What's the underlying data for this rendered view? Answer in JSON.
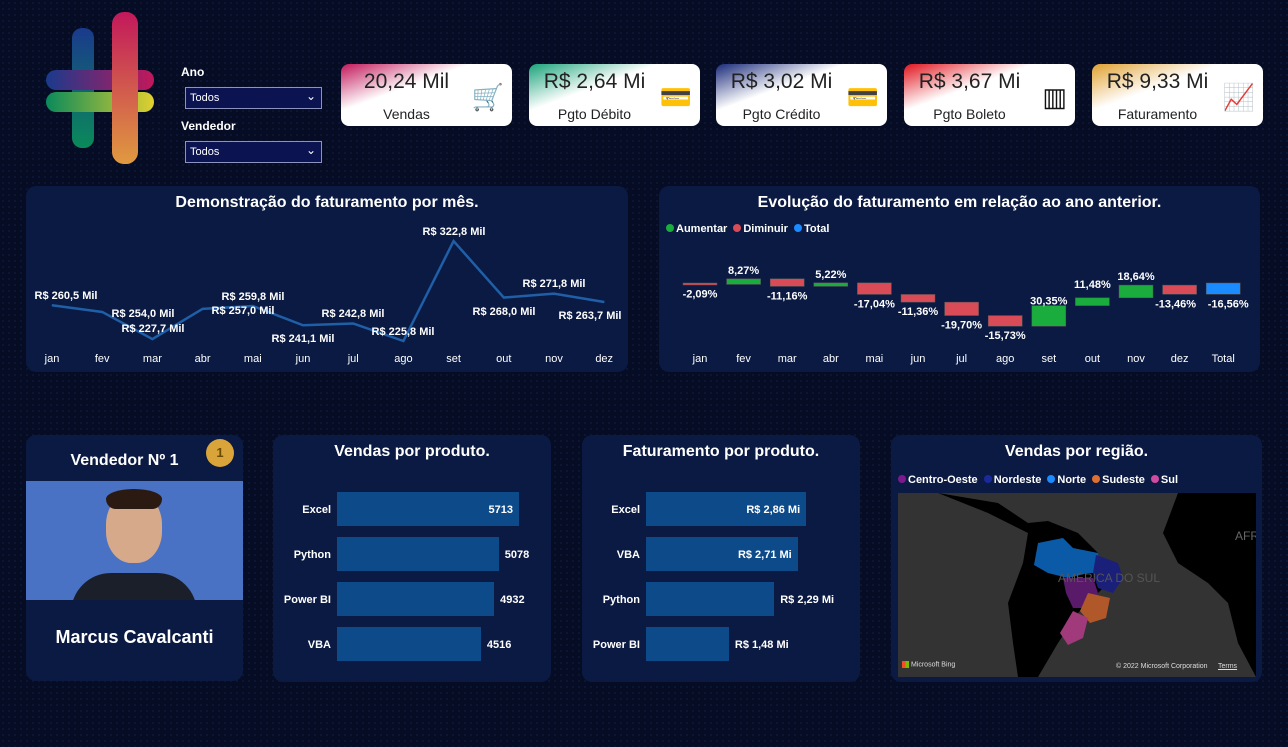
{
  "filters": {
    "ano_label": "Ano",
    "ano_value": "Todos",
    "vendedor_label": "Vendedor",
    "vendedor_value": "Todos"
  },
  "kpis": [
    {
      "value": "20,24 Mil",
      "label": "Vendas",
      "icon": "cart-icon",
      "color": "#c2185b"
    },
    {
      "value": "R$ 2,64 Mi",
      "label": "Pgto Débito",
      "icon": "debit-card-icon",
      "color": "#1aa37a"
    },
    {
      "value": "R$ 3,02 Mi",
      "label": "Pgto Crédito",
      "icon": "credit-card-icon",
      "color": "#1a2a7a"
    },
    {
      "value": "R$ 3,67 Mi",
      "label": "Pgto Boleto",
      "icon": "barcode-icon",
      "color": "#e0141e"
    },
    {
      "value": "R$ 9,33 Mi",
      "label": "Faturamento",
      "icon": "growth-chart-icon",
      "color": "#e0a030"
    }
  ],
  "chart_data": [
    {
      "type": "line",
      "title": "Demonstração do faturamento por mês.",
      "categories": [
        "jan",
        "fev",
        "mar",
        "abr",
        "mai",
        "jun",
        "jul",
        "ago",
        "set",
        "out",
        "nov",
        "dez"
      ],
      "values": [
        260.5,
        254.0,
        227.7,
        257.0,
        259.8,
        241.1,
        242.8,
        225.8,
        322.8,
        268.0,
        271.8,
        263.7
      ],
      "labels": [
        "R$ 260,5 Mil",
        "R$ 254,0 Mil",
        "R$ 227,7 Mil",
        "R$ 257,0 Mil",
        "R$ 259,8 Mil",
        "R$ 241,1 Mil",
        "R$ 242,8 Mil",
        "R$ 225,8 Mil",
        "R$ 322,8 Mil",
        "R$ 268,0 Mil",
        "R$ 271,8 Mil",
        "R$ 263,7 Mil"
      ],
      "unit": "Mil",
      "color": "#1f5fa8"
    },
    {
      "type": "waterfall",
      "title": "Evolução do faturamento em relação ao ano anterior.",
      "legend": [
        "Aumentar",
        "Diminuir",
        "Total"
      ],
      "colors": [
        "#1aad3e",
        "#d94b57",
        "#1a8cff"
      ],
      "categories": [
        "jan",
        "fev",
        "mar",
        "abr",
        "mai",
        "jun",
        "jul",
        "ago",
        "set",
        "out",
        "nov",
        "dez",
        "Total"
      ],
      "values": [
        -2.09,
        8.27,
        -11.16,
        5.22,
        -17.04,
        -11.36,
        -19.7,
        -15.73,
        30.35,
        11.48,
        18.64,
        -13.46,
        -16.56
      ],
      "labels": [
        "-2,09%",
        "8,27%",
        "-11,16%",
        "5,22%",
        "-17,04%",
        "-11,36%",
        "-19,70%",
        "-15,73%",
        "30,35%",
        "11,48%",
        "18,64%",
        "-13,46%",
        "-16,56%"
      ]
    },
    {
      "type": "bar",
      "title": "Vendas por produto.",
      "categories": [
        "Excel",
        "Python",
        "Power BI",
        "VBA"
      ],
      "values": [
        5713,
        5078,
        4932,
        4516
      ],
      "labels": [
        "5713",
        "5078",
        "4932",
        "4516"
      ]
    },
    {
      "type": "bar",
      "title": "Faturamento por produto.",
      "categories": [
        "Excel",
        "VBA",
        "Python",
        "Power BI"
      ],
      "values": [
        2.86,
        2.71,
        2.29,
        1.48
      ],
      "labels": [
        "R$ 2,86 Mi",
        "R$ 2,71 Mi",
        "R$ 2,29 Mi",
        "R$ 1,48 Mi"
      ]
    }
  ],
  "seller": {
    "title": "Vendedor Nº 1",
    "badge": "1",
    "name": "Marcus Cavalcanti"
  },
  "map": {
    "title": "Vendas por região.",
    "legend": [
      {
        "name": "Centro-Oeste",
        "color": "#7b1a8c"
      },
      {
        "name": "Nordeste",
        "color": "#1a2a9c"
      },
      {
        "name": "Norte",
        "color": "#1a8cff"
      },
      {
        "name": "Sudeste",
        "color": "#e07030"
      },
      {
        "name": "Sul",
        "color": "#d04aa0"
      }
    ],
    "map_label": "AMÉRICA DO SUL",
    "map_label2": "AFR",
    "bing": "Microsoft Bing",
    "copyright": "© 2022 Microsoft Corporation",
    "terms": "Terms"
  }
}
